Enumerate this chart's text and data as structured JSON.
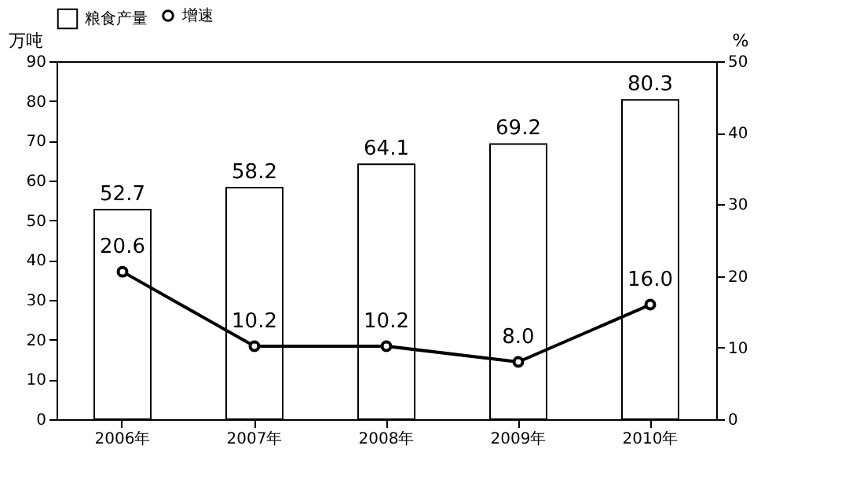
{
  "chart_data": {
    "type": "bar",
    "categories": [
      "2006年",
      "2007年",
      "2008年",
      "2009年",
      "2010年"
    ],
    "series": [
      {
        "name": "粮食产量",
        "color": "#ffffff",
        "values": [
          52.7,
          58.2,
          64.1,
          69.2,
          80.3
        ],
        "value_labels": [
          "52.7",
          "58.2",
          "64.1",
          "69.2",
          "80.3"
        ]
      },
      {
        "name": "增速",
        "type": "line",
        "axis": "y2",
        "color": "#000000",
        "values": [
          20.6,
          10.2,
          10.2,
          8.0,
          16.0
        ],
        "value_labels": [
          "20.6",
          "10.2",
          "10.2",
          "8.0",
          "16.0"
        ]
      }
    ],
    "ylabel": "万吨",
    "y2label": "%",
    "ylim": [
      0,
      90
    ],
    "yticks": [
      0,
      10,
      20,
      30,
      40,
      50,
      60,
      70,
      80,
      90
    ],
    "y2lim": [
      0,
      50
    ],
    "y2ticks": [
      0,
      10,
      20,
      30,
      40,
      50
    ],
    "legend": "top",
    "marker": "circle"
  }
}
